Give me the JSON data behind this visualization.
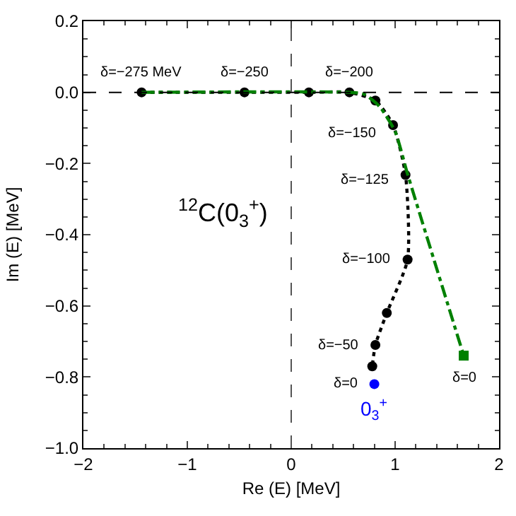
{
  "chart_data": {
    "type": "line",
    "xlabel": "Re (E) [MeV]",
    "ylabel": "Im (E) [MeV]",
    "xlim": [
      -2,
      2
    ],
    "ylim": [
      -1.0,
      0.2
    ],
    "xticks": [
      {
        "value": -2,
        "label": "−2"
      },
      {
        "value": -1,
        "label": "−1"
      },
      0,
      1,
      2
    ],
    "yticks": [
      {
        "value": -1.0,
        "label": "−1.0"
      },
      {
        "value": -0.8,
        "label": "−0.8"
      },
      {
        "value": -0.6,
        "label": "−0.6"
      },
      {
        "value": -0.4,
        "label": "−0.4"
      },
      {
        "value": -0.2,
        "label": "−0.2"
      },
      {
        "value": 0,
        "label": "0.0"
      },
      {
        "value": 0.2,
        "label": "0.2"
      }
    ],
    "legend": false,
    "series": [
      {
        "color": "#000000",
        "line_style": "dotted",
        "marker": "circle",
        "x": [
          -1.44,
          -0.45,
          0.17,
          0.56,
          0.81,
          0.98,
          1.1,
          1.12,
          0.92,
          0.81,
          0.78
        ],
        "values": [
          0,
          0,
          0,
          0,
          -0.023,
          -0.092,
          -0.232,
          -0.47,
          -0.62,
          -0.71,
          -0.77
        ]
      },
      {
        "type": "line",
        "color": "#008000",
        "line_style": "dashdot",
        "marker": "none",
        "x": [
          -1.44,
          0.56,
          0.7,
          0.85,
          1.0,
          1.12,
          1.66
        ],
        "values": [
          0,
          0,
          -0.005,
          -0.04,
          -0.11,
          -0.23,
          -0.74
        ]
      },
      {
        "type": "scatter",
        "color": "#008000",
        "marker": "square",
        "x": [
          1.66
        ],
        "values": [
          -0.74
        ]
      },
      {
        "type": "scatter",
        "name": "0$_{3}$$^{+}$",
        "color": "#0000ff",
        "marker": "circle",
        "x": [
          0.8
        ],
        "values": [
          -0.82
        ]
      }
    ],
    "ref_lines": [
      {
        "axis": "y",
        "value": 0,
        "line_style": "dashed",
        "color": "#000000"
      },
      {
        "axis": "x",
        "value": 0,
        "line_style": "dashed",
        "color": "#555555"
      }
    ],
    "annotations": [
      {
        "text": "δ=−275 MeV",
        "x": -1.44,
        "y": 0
      },
      {
        "text": "δ=−250",
        "x": -0.45,
        "y": 0
      },
      {
        "text": "δ=−200",
        "x": 0.56,
        "y": 0
      },
      {
        "text": "δ=−150",
        "x": 0.98,
        "y": -0.092
      },
      {
        "text": "δ=−125",
        "x": 1.1,
        "y": -0.232
      },
      {
        "text": "δ=−100",
        "x": 1.12,
        "y": -0.47
      },
      {
        "text": "δ=−50",
        "x": 0.81,
        "y": -0.71
      },
      {
        "text": "δ=0",
        "x": 0.8,
        "y": -0.82
      },
      {
        "text": "δ=0",
        "x": 1.66,
        "y": -0.74
      },
      "$^{12}$C(0$_{3}$$^{+}$)"
    ]
  }
}
